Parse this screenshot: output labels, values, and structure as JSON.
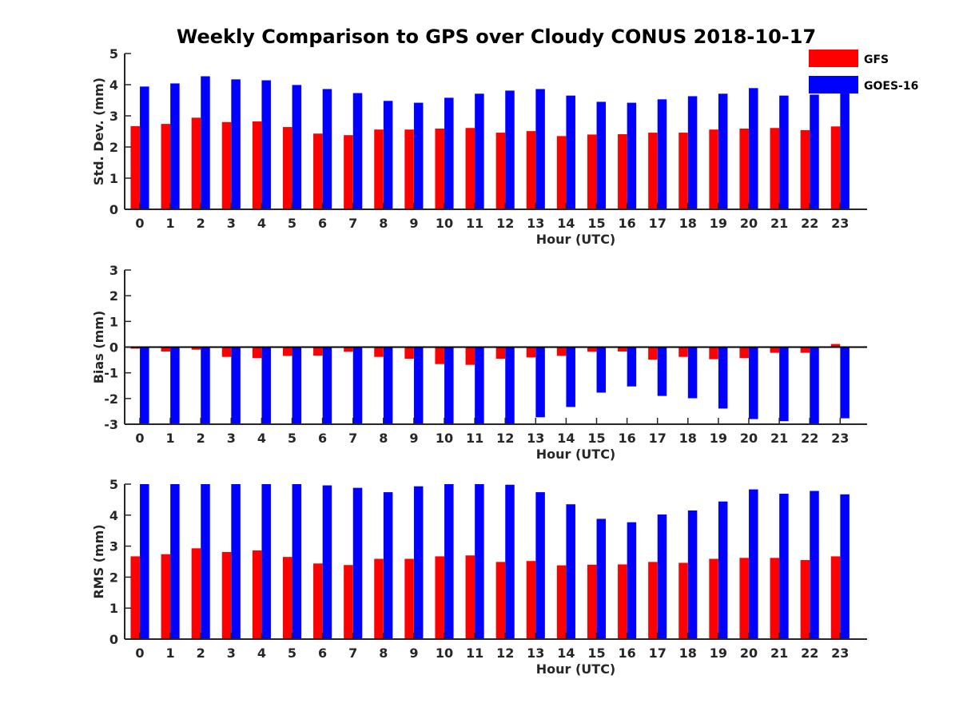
{
  "title": "Weekly Comparison to GPS over Cloudy CONUS 2018-10-17",
  "colors": {
    "GFS": "#ff0000",
    "GOES-16": "#0000ff",
    "axis": "#262626"
  },
  "legend": [
    "GFS",
    "GOES-16"
  ],
  "chart_data": [
    {
      "type": "bar",
      "xlabel": "Hour (UTC)",
      "ylabel": "Std. Dev. (mm)",
      "ylim": [
        0,
        5
      ],
      "yticks": [
        0,
        1,
        2,
        3,
        4,
        5
      ],
      "categories": [
        "0",
        "1",
        "2",
        "3",
        "4",
        "5",
        "6",
        "7",
        "8",
        "9",
        "10",
        "11",
        "12",
        "13",
        "14",
        "15",
        "16",
        "17",
        "18",
        "19",
        "20",
        "21",
        "22",
        "23"
      ],
      "series": [
        {
          "name": "GFS",
          "values": [
            2.67,
            2.74,
            2.94,
            2.8,
            2.82,
            2.64,
            2.43,
            2.38,
            2.56,
            2.56,
            2.59,
            2.61,
            2.46,
            2.51,
            2.35,
            2.4,
            2.41,
            2.46,
            2.46,
            2.56,
            2.59,
            2.61,
            2.54,
            2.66
          ]
        },
        {
          "name": "GOES-16",
          "values": [
            3.94,
            4.04,
            4.27,
            4.17,
            4.14,
            3.99,
            3.86,
            3.73,
            3.48,
            3.42,
            3.58,
            3.71,
            3.81,
            3.86,
            3.65,
            3.45,
            3.42,
            3.53,
            3.63,
            3.71,
            3.89,
            3.65,
            3.68,
            3.83
          ]
        }
      ]
    },
    {
      "type": "bar",
      "xlabel": "Hour (UTC)",
      "ylabel": "Bias (mm)",
      "ylim": [
        -3,
        3
      ],
      "yticks": [
        -3,
        -2,
        -1,
        0,
        1,
        2,
        3
      ],
      "categories": [
        "0",
        "1",
        "2",
        "3",
        "4",
        "5",
        "6",
        "7",
        "8",
        "9",
        "10",
        "11",
        "12",
        "13",
        "14",
        "15",
        "16",
        "17",
        "18",
        "19",
        "20",
        "21",
        "22",
        "23"
      ],
      "series": [
        {
          "name": "GFS",
          "values": [
            -0.06,
            -0.17,
            -0.1,
            -0.38,
            -0.43,
            -0.34,
            -0.33,
            -0.18,
            -0.38,
            -0.45,
            -0.66,
            -0.69,
            -0.45,
            -0.4,
            -0.34,
            -0.18,
            -0.17,
            -0.49,
            -0.38,
            -0.47,
            -0.43,
            -0.22,
            -0.22,
            0.12
          ]
        },
        {
          "name": "GOES-16",
          "values": [
            -3.0,
            -3.0,
            -3.0,
            -3.0,
            -3.0,
            -3.0,
            -3.0,
            -3.0,
            -3.0,
            -3.0,
            -3.0,
            -3.0,
            -3.0,
            -2.73,
            -2.33,
            -1.77,
            -1.53,
            -1.9,
            -1.99,
            -2.39,
            -2.8,
            -2.88,
            -3.0,
            -2.77
          ]
        }
      ]
    },
    {
      "type": "bar",
      "xlabel": "Hour (UTC)",
      "ylabel": "RMS (mm)",
      "ylim": [
        0,
        5
      ],
      "yticks": [
        0,
        1,
        2,
        3,
        4,
        5
      ],
      "categories": [
        "0",
        "1",
        "2",
        "3",
        "4",
        "5",
        "6",
        "7",
        "8",
        "9",
        "10",
        "11",
        "12",
        "13",
        "14",
        "15",
        "16",
        "17",
        "18",
        "19",
        "20",
        "21",
        "22",
        "23"
      ],
      "series": [
        {
          "name": "GFS",
          "values": [
            2.67,
            2.74,
            2.93,
            2.81,
            2.86,
            2.65,
            2.44,
            2.39,
            2.59,
            2.59,
            2.67,
            2.7,
            2.49,
            2.52,
            2.38,
            2.4,
            2.41,
            2.49,
            2.46,
            2.59,
            2.62,
            2.62,
            2.55,
            2.67
          ]
        },
        {
          "name": "GOES-16",
          "values": [
            5.0,
            5.0,
            5.0,
            5.0,
            5.0,
            5.0,
            4.96,
            4.88,
            4.74,
            4.93,
            5.0,
            5.0,
            4.98,
            4.74,
            4.35,
            3.88,
            3.77,
            4.02,
            4.15,
            4.44,
            4.83,
            4.69,
            4.78,
            4.67
          ]
        }
      ]
    }
  ]
}
